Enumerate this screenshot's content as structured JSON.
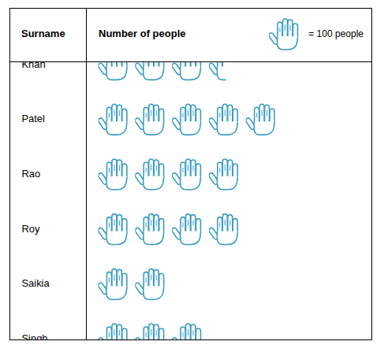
{
  "chart_data": {
    "type": "pictograph",
    "headers": [
      "Surname",
      "Number of people"
    ],
    "key": {
      "value": 100,
      "label": "= 100 people"
    },
    "categories": [
      "Khan",
      "Patel",
      "Rao",
      "Roy",
      "Saikia",
      "Singh"
    ],
    "values": [
      350,
      500,
      400,
      400,
      200,
      300
    ],
    "color": "#3a9cc4",
    "tick_labels": false
  }
}
